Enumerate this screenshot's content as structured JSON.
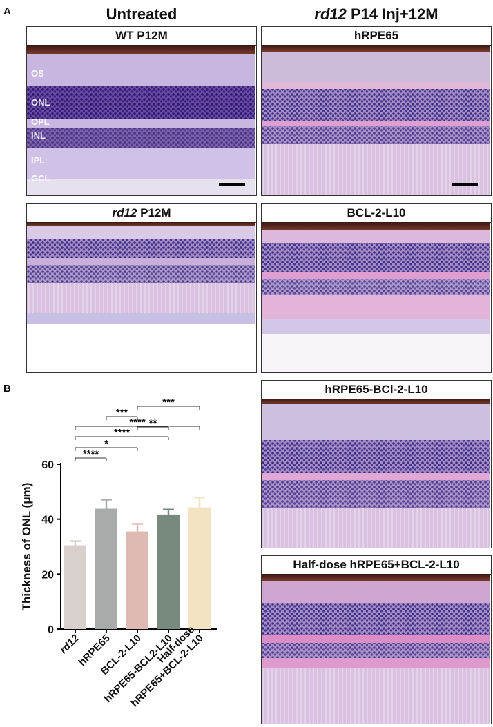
{
  "panel_labels": {
    "a": "A",
    "b": "B"
  },
  "column_headers": {
    "left": "Untreated",
    "right_italic": "rd12",
    "right_rest": " P14 Inj+12M"
  },
  "panels": {
    "wt": {
      "title": "WT P12M"
    },
    "hrpe65": {
      "title": "hRPE65"
    },
    "rd12": {
      "title_italic": "rd12",
      "title_rest": " P12M"
    },
    "bcl": {
      "title": "BCL-2-L10"
    },
    "combo": {
      "title": "hRPE65-BCl-2-L10"
    },
    "half": {
      "title": "Half-dose hRPE65+BCL-2-L10"
    }
  },
  "layer_labels": [
    "OS",
    "ONL",
    "OPL",
    "INL",
    "IPL",
    "GCL"
  ],
  "colors": {
    "tissue_pink": "#d7b0d8",
    "nuclei_purple": "#4a2a86",
    "rpe_brown": "#5a2418"
  },
  "chart_data": {
    "type": "bar",
    "ylabel": "Thickness of ONL (μm)",
    "ylim": [
      0,
      60
    ],
    "yticks": [
      0,
      20,
      40,
      60
    ],
    "categories": [
      "rd12",
      "hRPE65",
      "BCL-2-L10",
      "hRPE65-BCL2-L10",
      "Half-dose hRPE65+BCL-2-L10"
    ],
    "category_lines": [
      [
        "rd12"
      ],
      [
        "hRPE65"
      ],
      [
        "BCL-2-L10"
      ],
      [
        "hRPE65-BCL2-L10"
      ],
      [
        "Half-dose",
        "hRPE65+BCL-2-L10"
      ]
    ],
    "values": [
      30.5,
      43.8,
      35.5,
      41.7,
      44.3
    ],
    "errors": [
      1.5,
      3.3,
      2.8,
      1.8,
      3.6
    ],
    "bar_colors": [
      "#d8d0cc",
      "#a9abab",
      "#dfbab2",
      "#788a7e",
      "#f3e3c3"
    ],
    "significance": [
      {
        "from": 0,
        "to": 1,
        "label": "****"
      },
      {
        "from": 0,
        "to": 2,
        "label": "*"
      },
      {
        "from": 0,
        "to": 3,
        "label": "****"
      },
      {
        "from": 0,
        "to": 4,
        "label": "****"
      },
      {
        "from": 1,
        "to": 2,
        "label": "***"
      },
      {
        "from": 2,
        "to": 3,
        "label": "**"
      },
      {
        "from": 2,
        "to": 4,
        "label": "***"
      }
    ]
  }
}
